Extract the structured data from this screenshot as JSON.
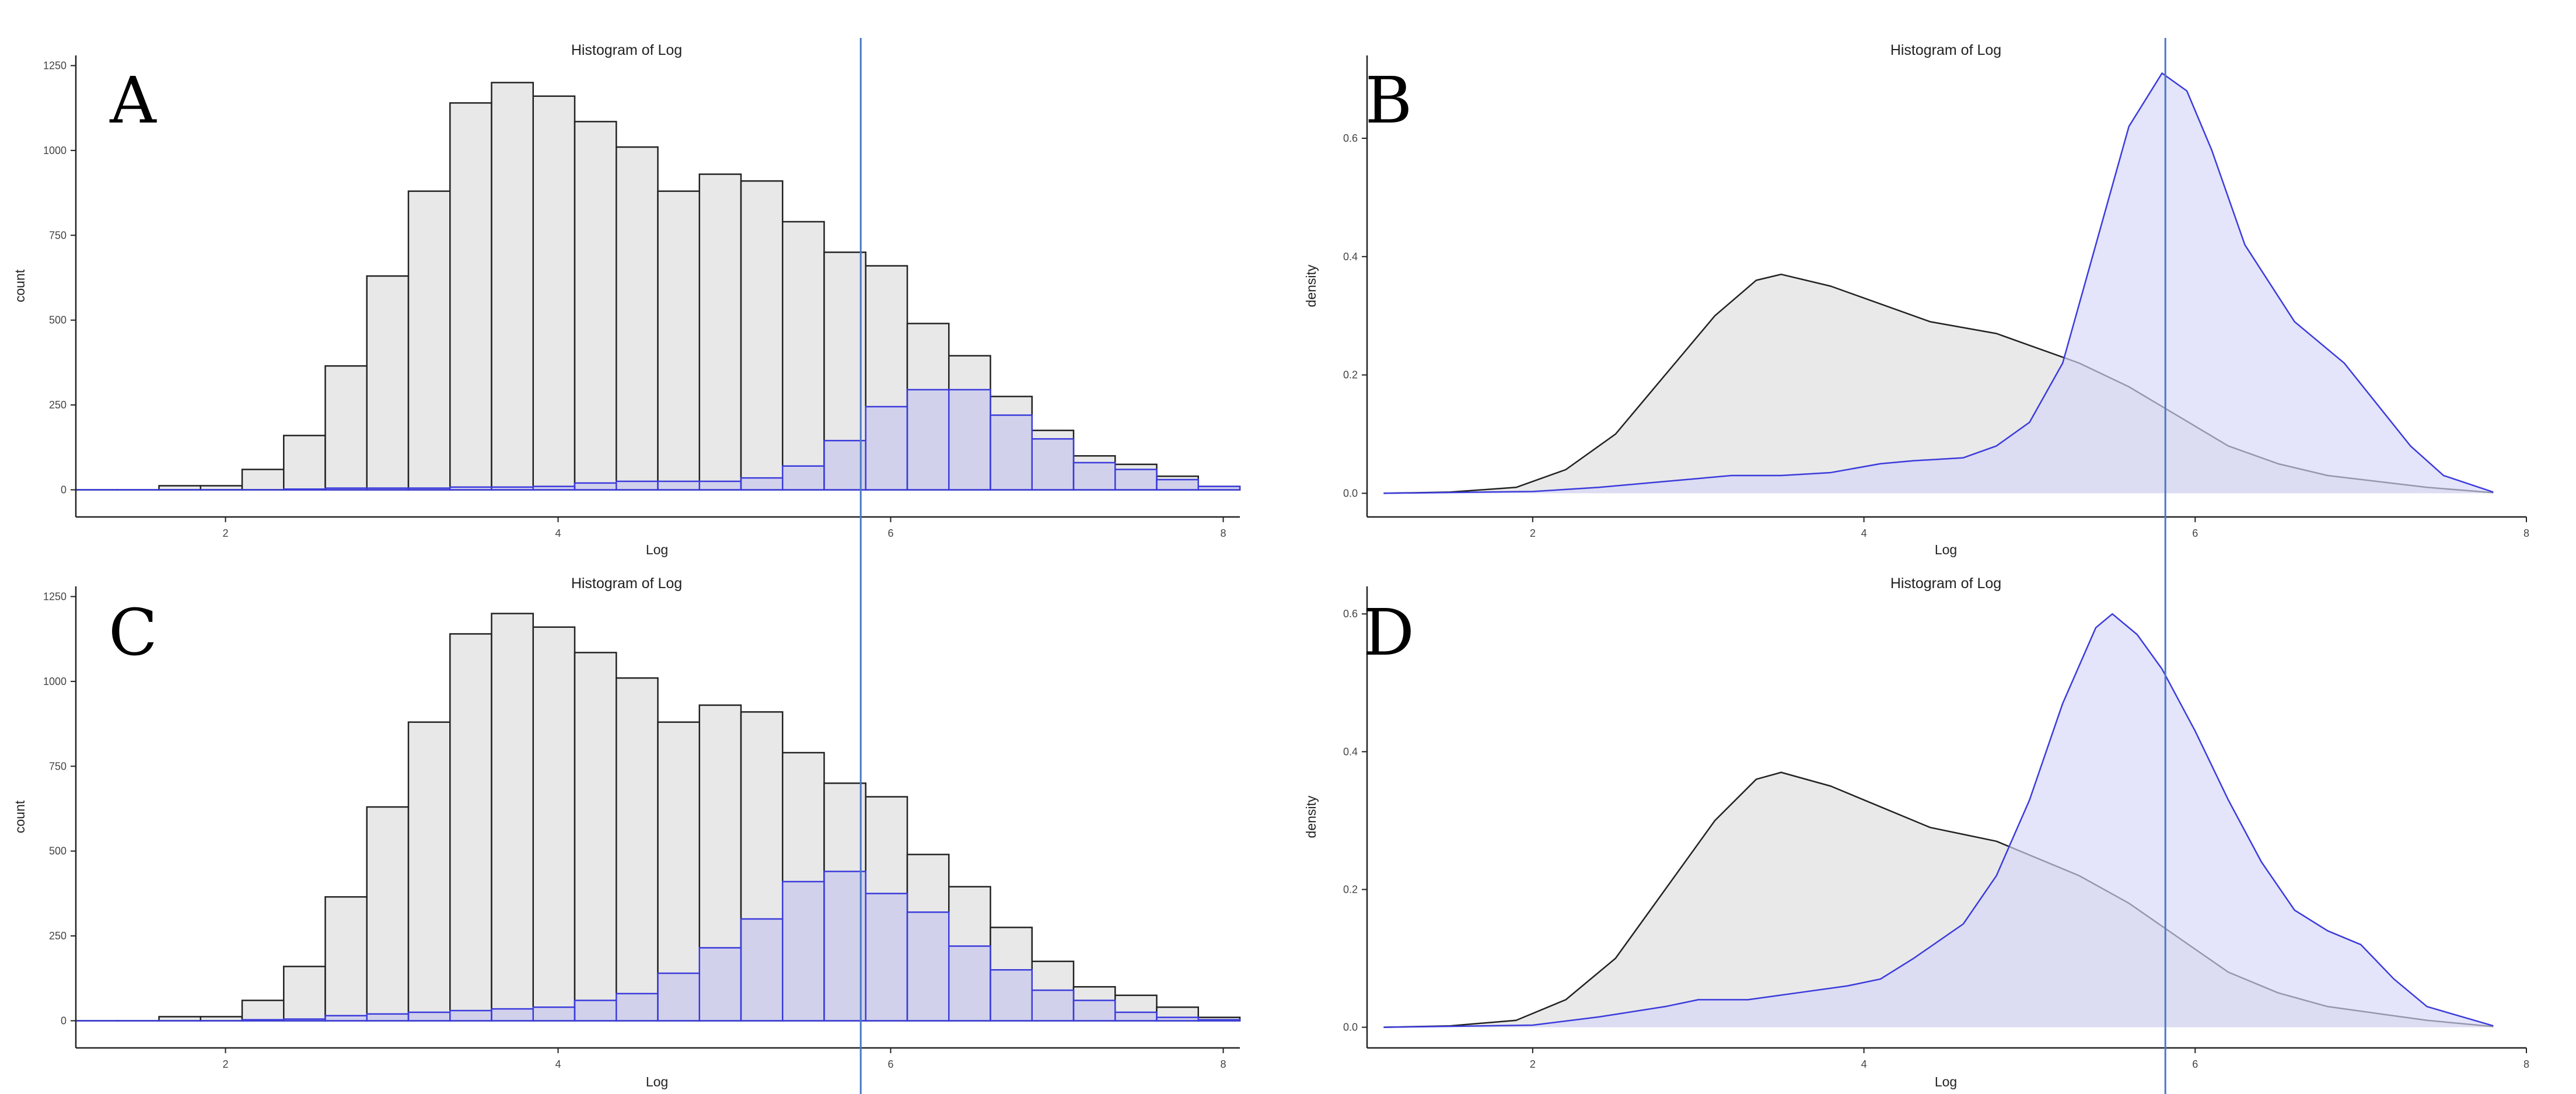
{
  "colors": {
    "gray_fill": "#e8e8e8",
    "gray_stroke": "#222222",
    "blue_fill": "#c9c9ee",
    "blue_fill_density": "#d6d6f7",
    "blue_stroke": "#3b3bdc",
    "vline": "#4a78c8",
    "axis": "#222222"
  },
  "chart_data": [
    {
      "panel": "A",
      "type": "bar",
      "title": "Histogram of Log",
      "xlabel": "Log",
      "ylabel": "count",
      "xlim": [
        1.1,
        8.1
      ],
      "ylim": [
        -80,
        1280
      ],
      "xticks": [
        2,
        4,
        6,
        8
      ],
      "yticks": [
        0,
        250,
        500,
        750,
        1000,
        1250
      ],
      "bin_width": 0.25,
      "vline_x": 5.82,
      "series": [
        {
          "name": "all",
          "color": "gray",
          "bins": [
            [
              1.1,
              1.35,
              0
            ],
            [
              1.35,
              1.6,
              0
            ],
            [
              1.6,
              1.85,
              12
            ],
            [
              1.85,
              2.1,
              12
            ],
            [
              2.1,
              2.35,
              60
            ],
            [
              2.35,
              2.6,
              160
            ],
            [
              2.6,
              2.85,
              365
            ],
            [
              2.85,
              3.1,
              630
            ],
            [
              3.1,
              3.35,
              880
            ],
            [
              3.35,
              3.6,
              1140
            ],
            [
              3.6,
              3.85,
              1200
            ],
            [
              3.85,
              4.1,
              1160
            ],
            [
              4.1,
              4.35,
              1085
            ],
            [
              4.35,
              4.6,
              1010
            ],
            [
              4.6,
              4.85,
              880
            ],
            [
              4.85,
              5.1,
              930
            ],
            [
              5.1,
              5.35,
              910
            ],
            [
              5.35,
              5.6,
              790
            ],
            [
              5.6,
              5.85,
              700
            ],
            [
              5.85,
              6.1,
              660
            ],
            [
              6.1,
              6.35,
              490
            ],
            [
              6.35,
              6.6,
              395
            ],
            [
              6.6,
              6.85,
              275
            ],
            [
              6.85,
              7.1,
              175
            ],
            [
              7.1,
              7.35,
              100
            ],
            [
              7.35,
              7.6,
              75
            ],
            [
              7.6,
              7.85,
              40
            ],
            [
              7.85,
              8.1,
              10
            ]
          ]
        },
        {
          "name": "subset",
          "color": "blue",
          "bins": [
            [
              1.1,
              1.35,
              0
            ],
            [
              1.35,
              1.6,
              0
            ],
            [
              1.6,
              1.85,
              0
            ],
            [
              1.85,
              2.1,
              0
            ],
            [
              2.1,
              2.35,
              0
            ],
            [
              2.35,
              2.6,
              2
            ],
            [
              2.6,
              2.85,
              5
            ],
            [
              2.85,
              3.1,
              5
            ],
            [
              3.1,
              3.35,
              5
            ],
            [
              3.35,
              3.6,
              8
            ],
            [
              3.6,
              3.85,
              8
            ],
            [
              3.85,
              4.1,
              10
            ],
            [
              4.1,
              4.35,
              20
            ],
            [
              4.35,
              4.6,
              25
            ],
            [
              4.6,
              4.85,
              25
            ],
            [
              4.85,
              5.1,
              25
            ],
            [
              5.1,
              5.35,
              35
            ],
            [
              5.35,
              5.6,
              70
            ],
            [
              5.6,
              5.85,
              145
            ],
            [
              5.85,
              6.1,
              245
            ],
            [
              6.1,
              6.35,
              295
            ],
            [
              6.35,
              6.6,
              295
            ],
            [
              6.6,
              6.85,
              220
            ],
            [
              6.85,
              7.1,
              150
            ],
            [
              7.1,
              7.35,
              80
            ],
            [
              7.35,
              7.6,
              60
            ],
            [
              7.6,
              7.85,
              30
            ],
            [
              7.85,
              8.1,
              10
            ]
          ]
        }
      ]
    },
    {
      "panel": "B",
      "type": "area",
      "title": "Histogram of Log",
      "xlabel": "Log",
      "ylabel": "density",
      "xlim": [
        1.0,
        8.0
      ],
      "ylim": [
        -0.04,
        0.74
      ],
      "xticks": [
        2,
        4,
        6,
        8
      ],
      "yticks": [
        0.0,
        0.2,
        0.4,
        0.6
      ],
      "ytick_labels": [
        "0.0",
        "0.2",
        "0.4",
        "0.6"
      ],
      "vline_x": 5.82,
      "series": [
        {
          "name": "all",
          "color": "gray",
          "points": [
            [
              1.1,
              0
            ],
            [
              1.5,
              0.002
            ],
            [
              1.9,
              0.01
            ],
            [
              2.2,
              0.04
            ],
            [
              2.5,
              0.1
            ],
            [
              2.8,
              0.2
            ],
            [
              3.1,
              0.3
            ],
            [
              3.35,
              0.36
            ],
            [
              3.5,
              0.37
            ],
            [
              3.8,
              0.35
            ],
            [
              4.1,
              0.32
            ],
            [
              4.4,
              0.29
            ],
            [
              4.6,
              0.28
            ],
            [
              4.8,
              0.27
            ],
            [
              5.0,
              0.25
            ],
            [
              5.3,
              0.22
            ],
            [
              5.6,
              0.18
            ],
            [
              5.9,
              0.13
            ],
            [
              6.2,
              0.08
            ],
            [
              6.5,
              0.05
            ],
            [
              6.8,
              0.03
            ],
            [
              7.1,
              0.02
            ],
            [
              7.4,
              0.01
            ],
            [
              7.8,
              0.001
            ]
          ]
        },
        {
          "name": "subset",
          "color": "blue",
          "points": [
            [
              1.1,
              0
            ],
            [
              2.0,
              0.003
            ],
            [
              2.4,
              0.01
            ],
            [
              2.8,
              0.02
            ],
            [
              3.0,
              0.025
            ],
            [
              3.2,
              0.03
            ],
            [
              3.5,
              0.03
            ],
            [
              3.8,
              0.035
            ],
            [
              4.1,
              0.05
            ],
            [
              4.3,
              0.055
            ],
            [
              4.6,
              0.06
            ],
            [
              4.8,
              0.08
            ],
            [
              5.0,
              0.12
            ],
            [
              5.2,
              0.22
            ],
            [
              5.4,
              0.42
            ],
            [
              5.6,
              0.62
            ],
            [
              5.8,
              0.71
            ],
            [
              5.95,
              0.68
            ],
            [
              6.1,
              0.58
            ],
            [
              6.3,
              0.42
            ],
            [
              6.6,
              0.29
            ],
            [
              6.9,
              0.22
            ],
            [
              7.1,
              0.15
            ],
            [
              7.3,
              0.08
            ],
            [
              7.5,
              0.03
            ],
            [
              7.8,
              0.002
            ]
          ]
        }
      ]
    },
    {
      "panel": "C",
      "type": "bar",
      "title": "Histogram of Log",
      "xlabel": "Log",
      "ylabel": "count",
      "xlim": [
        1.1,
        8.1
      ],
      "ylim": [
        -80,
        1280
      ],
      "xticks": [
        2,
        4,
        6,
        8
      ],
      "yticks": [
        0,
        250,
        500,
        750,
        1000,
        1250
      ],
      "bin_width": 0.25,
      "vline_x": 5.82,
      "series": [
        {
          "name": "all",
          "color": "gray",
          "bins": [
            [
              1.1,
              1.35,
              0
            ],
            [
              1.35,
              1.6,
              0
            ],
            [
              1.6,
              1.85,
              12
            ],
            [
              1.85,
              2.1,
              12
            ],
            [
              2.1,
              2.35,
              60
            ],
            [
              2.35,
              2.6,
              160
            ],
            [
              2.6,
              2.85,
              365
            ],
            [
              2.85,
              3.1,
              630
            ],
            [
              3.1,
              3.35,
              880
            ],
            [
              3.35,
              3.6,
              1140
            ],
            [
              3.6,
              3.85,
              1200
            ],
            [
              3.85,
              4.1,
              1160
            ],
            [
              4.1,
              4.35,
              1085
            ],
            [
              4.35,
              4.6,
              1010
            ],
            [
              4.6,
              4.85,
              880
            ],
            [
              4.85,
              5.1,
              930
            ],
            [
              5.1,
              5.35,
              910
            ],
            [
              5.35,
              5.6,
              790
            ],
            [
              5.6,
              5.85,
              700
            ],
            [
              5.85,
              6.1,
              660
            ],
            [
              6.1,
              6.35,
              490
            ],
            [
              6.35,
              6.6,
              395
            ],
            [
              6.6,
              6.85,
              275
            ],
            [
              6.85,
              7.1,
              175
            ],
            [
              7.1,
              7.35,
              100
            ],
            [
              7.35,
              7.6,
              75
            ],
            [
              7.6,
              7.85,
              40
            ],
            [
              7.85,
              8.1,
              10
            ]
          ]
        },
        {
          "name": "subset",
          "color": "blue",
          "bins": [
            [
              1.1,
              1.35,
              0
            ],
            [
              1.35,
              1.6,
              0
            ],
            [
              1.6,
              1.85,
              0
            ],
            [
              1.85,
              2.1,
              0
            ],
            [
              2.1,
              2.35,
              3
            ],
            [
              2.35,
              2.6,
              5
            ],
            [
              2.6,
              2.85,
              15
            ],
            [
              2.85,
              3.1,
              20
            ],
            [
              3.1,
              3.35,
              25
            ],
            [
              3.35,
              3.6,
              30
            ],
            [
              3.6,
              3.85,
              35
            ],
            [
              3.85,
              4.1,
              40
            ],
            [
              4.1,
              4.35,
              60
            ],
            [
              4.35,
              4.6,
              80
            ],
            [
              4.6,
              4.85,
              140
            ],
            [
              4.85,
              5.1,
              215
            ],
            [
              5.1,
              5.35,
              300
            ],
            [
              5.35,
              5.6,
              410
            ],
            [
              5.6,
              5.85,
              440
            ],
            [
              5.85,
              6.1,
              375
            ],
            [
              6.1,
              6.35,
              320
            ],
            [
              6.35,
              6.6,
              220
            ],
            [
              6.6,
              6.85,
              150
            ],
            [
              6.85,
              7.1,
              90
            ],
            [
              7.1,
              7.35,
              60
            ],
            [
              7.35,
              7.6,
              25
            ],
            [
              7.6,
              7.85,
              10
            ],
            [
              7.85,
              8.1,
              3
            ]
          ]
        }
      ]
    },
    {
      "panel": "D",
      "type": "area",
      "title": "Histogram of Log",
      "xlabel": "Log",
      "ylabel": "density",
      "xlim": [
        1.0,
        8.0
      ],
      "ylim": [
        -0.03,
        0.64
      ],
      "xticks": [
        2,
        4,
        6,
        8
      ],
      "yticks": [
        0.0,
        0.2,
        0.4,
        0.6
      ],
      "ytick_labels": [
        "0.0",
        "0.2",
        "0.4",
        "0.6"
      ],
      "vline_x": 5.82,
      "series": [
        {
          "name": "all",
          "color": "gray",
          "points": [
            [
              1.1,
              0
            ],
            [
              1.5,
              0.002
            ],
            [
              1.9,
              0.01
            ],
            [
              2.2,
              0.04
            ],
            [
              2.5,
              0.1
            ],
            [
              2.8,
              0.2
            ],
            [
              3.1,
              0.3
            ],
            [
              3.35,
              0.36
            ],
            [
              3.5,
              0.37
            ],
            [
              3.8,
              0.35
            ],
            [
              4.1,
              0.32
            ],
            [
              4.4,
              0.29
            ],
            [
              4.6,
              0.28
            ],
            [
              4.8,
              0.27
            ],
            [
              5.0,
              0.25
            ],
            [
              5.3,
              0.22
            ],
            [
              5.6,
              0.18
            ],
            [
              5.9,
              0.13
            ],
            [
              6.2,
              0.08
            ],
            [
              6.5,
              0.05
            ],
            [
              6.8,
              0.03
            ],
            [
              7.1,
              0.02
            ],
            [
              7.4,
              0.01
            ],
            [
              7.8,
              0.001
            ]
          ]
        },
        {
          "name": "subset",
          "color": "blue",
          "points": [
            [
              1.1,
              0
            ],
            [
              2.0,
              0.003
            ],
            [
              2.4,
              0.015
            ],
            [
              2.8,
              0.03
            ],
            [
              3.0,
              0.04
            ],
            [
              3.3,
              0.04
            ],
            [
              3.6,
              0.05
            ],
            [
              3.9,
              0.06
            ],
            [
              4.1,
              0.07
            ],
            [
              4.3,
              0.1
            ],
            [
              4.6,
              0.15
            ],
            [
              4.8,
              0.22
            ],
            [
              5.0,
              0.33
            ],
            [
              5.2,
              0.47
            ],
            [
              5.4,
              0.58
            ],
            [
              5.5,
              0.6
            ],
            [
              5.65,
              0.57
            ],
            [
              5.8,
              0.52
            ],
            [
              6.0,
              0.43
            ],
            [
              6.2,
              0.33
            ],
            [
              6.4,
              0.24
            ],
            [
              6.6,
              0.17
            ],
            [
              6.8,
              0.14
            ],
            [
              7.0,
              0.12
            ],
            [
              7.2,
              0.07
            ],
            [
              7.4,
              0.03
            ],
            [
              7.8,
              0.002
            ]
          ]
        }
      ]
    }
  ]
}
